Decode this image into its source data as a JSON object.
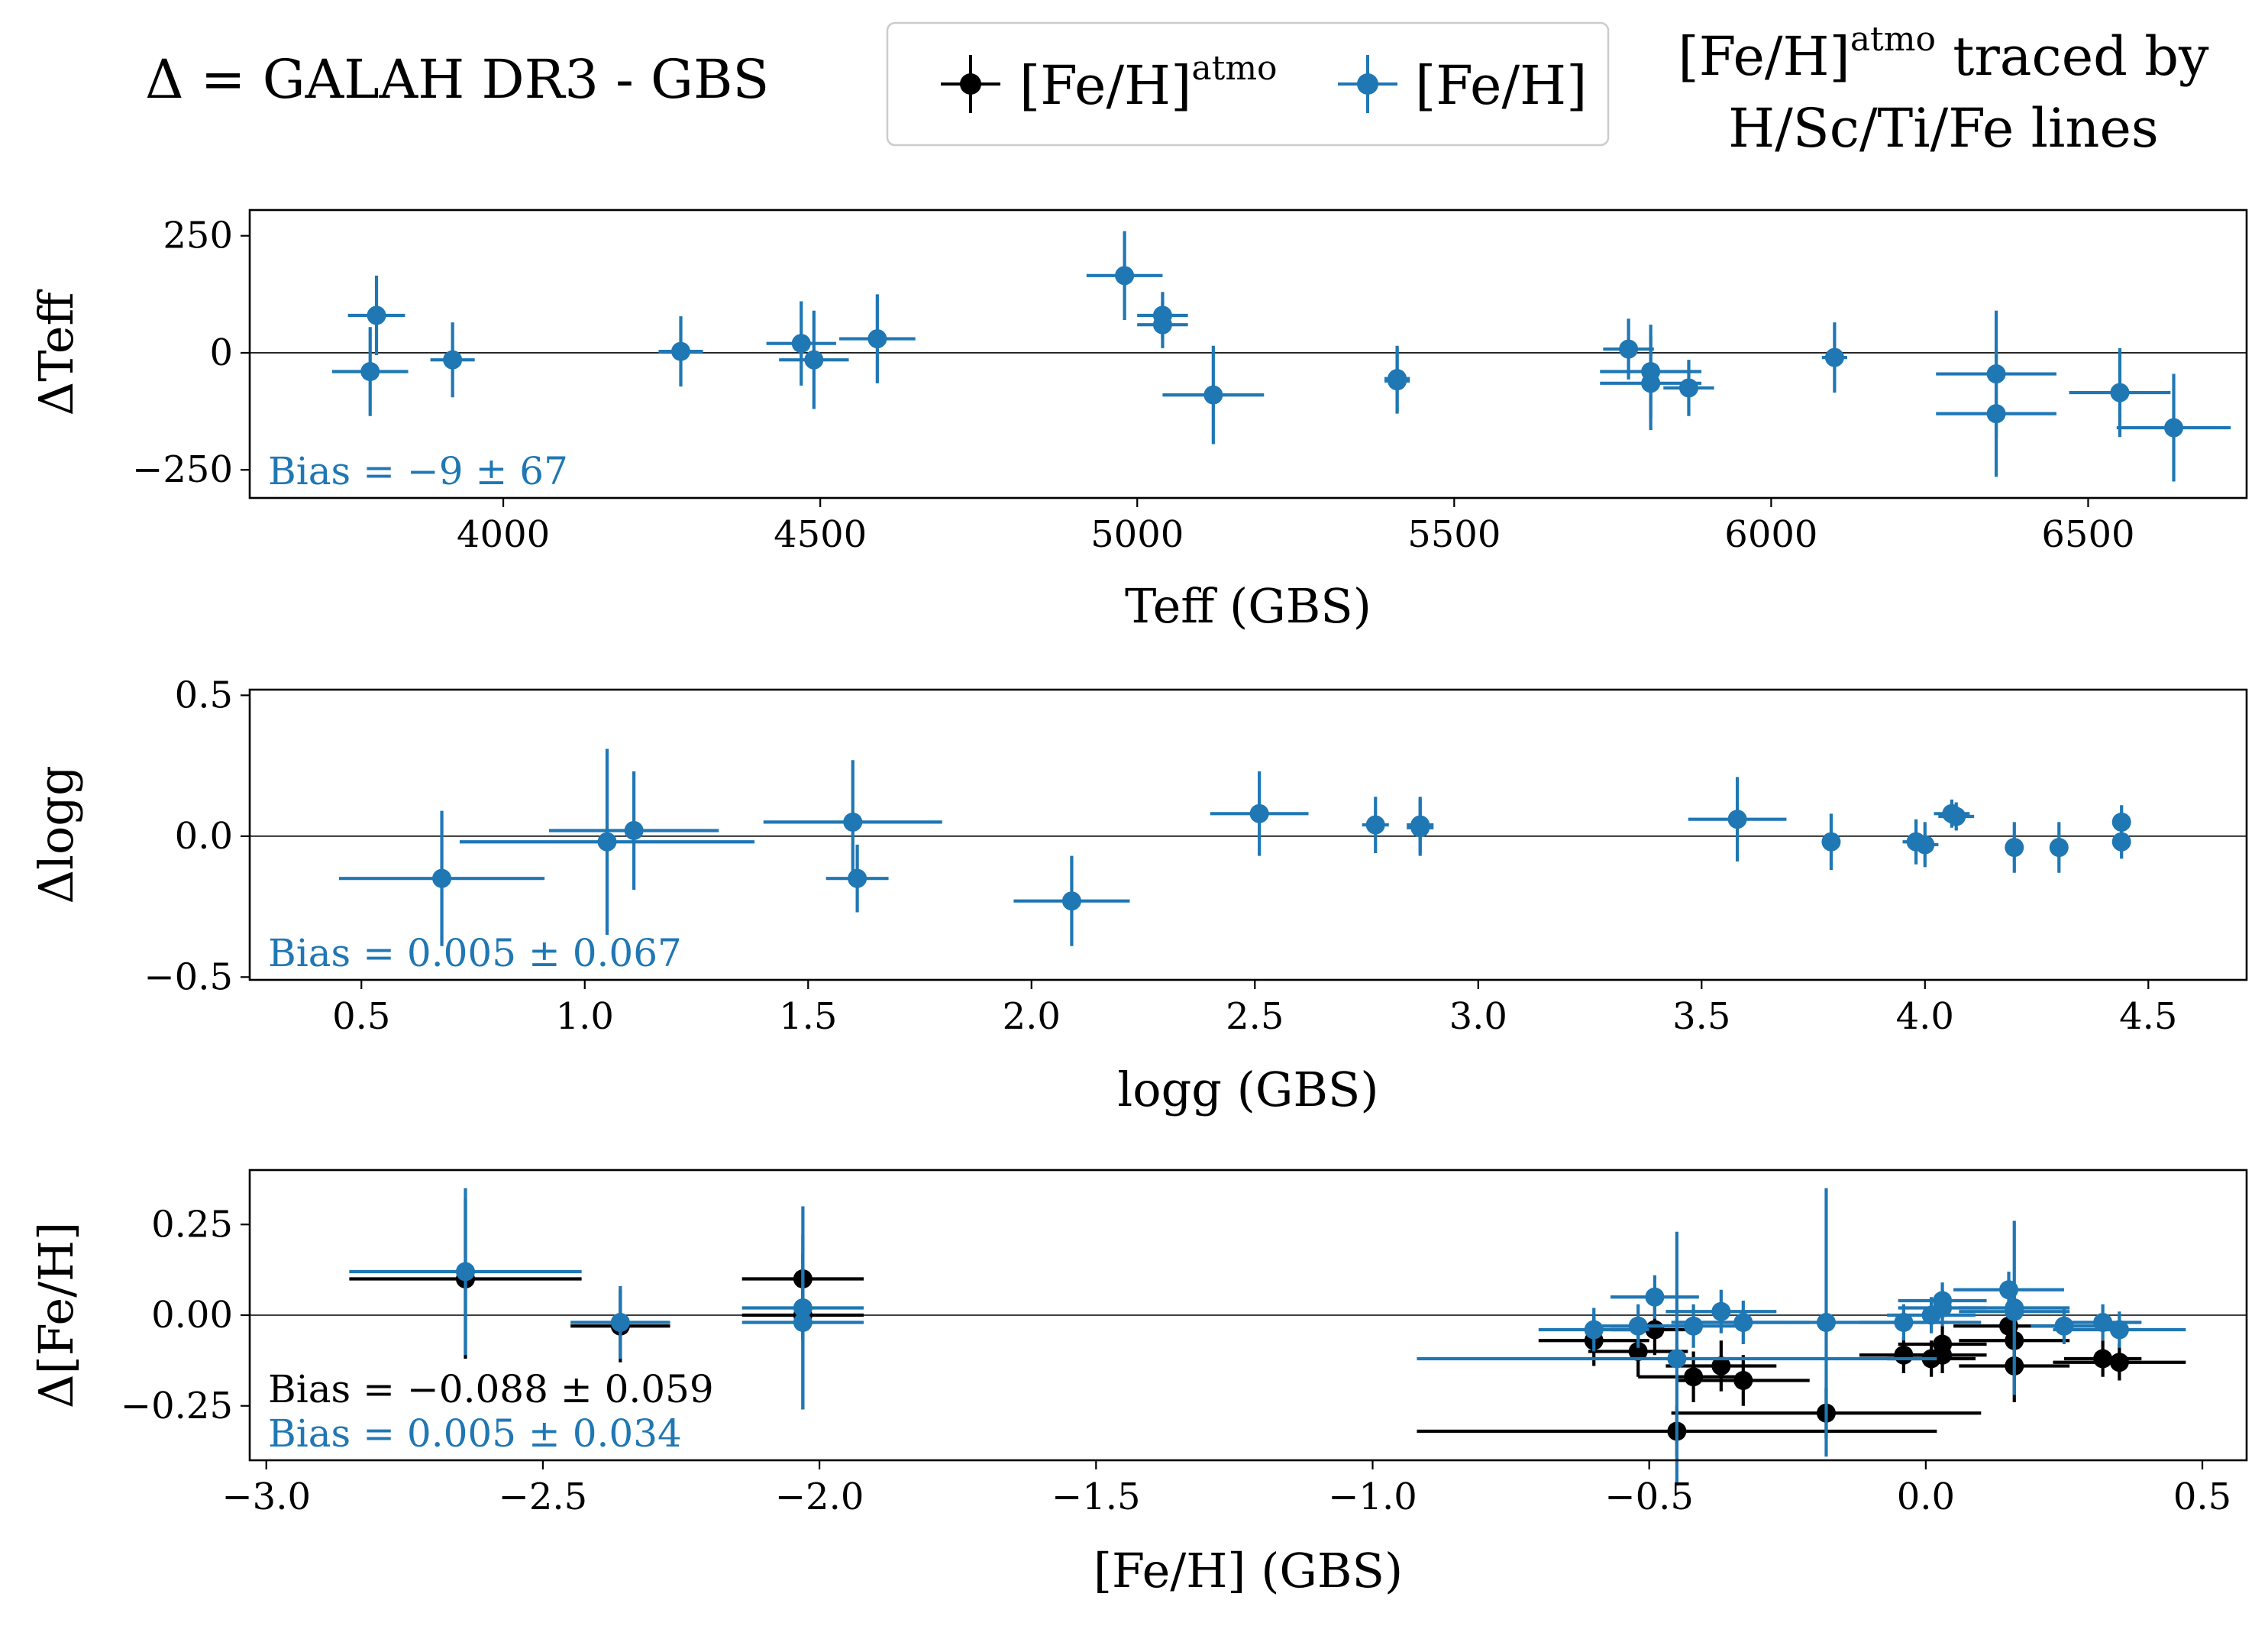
{
  "header": {
    "definition": "Δ = GALAH DR3 - GBS",
    "legend": [
      {
        "label": "[Fe/H]",
        "sup": "atmo",
        "color": "#000000"
      },
      {
        "label": "[Fe/H]",
        "sup": "",
        "color": "#1f77b4"
      }
    ],
    "note_line1_pre": "[Fe/H]",
    "note_line1_sup": "atmo",
    "note_line1_post": " traced by",
    "note_line2": "H/Sc/Ti/Fe lines"
  },
  "colors": {
    "atmo": "#000000",
    "feh": "#1f77b4"
  },
  "chart_data": [
    {
      "type": "scatter",
      "xlabel": "Teff (GBS)",
      "ylabel": "ΔTeff",
      "xlim": [
        3600,
        6750
      ],
      "ylim": [
        -310,
        305
      ],
      "xticks": [
        4000,
        4500,
        5000,
        5500,
        6000,
        6500
      ],
      "yticks": [
        -250,
        0,
        250
      ],
      "ytick_labels": [
        "−250",
        "0",
        "250"
      ],
      "annotations": [
        {
          "text": "Bias = −9 ± 67",
          "color": "#1f77b4"
        }
      ],
      "series": [
        {
          "color": "#1f77b4",
          "points": [
            {
              "x": 3800,
              "y": 80,
              "xerr": 45,
              "yerr": 85
            },
            {
              "x": 3790,
              "y": -40,
              "xerr": 60,
              "yerr": 95
            },
            {
              "x": 3920,
              "y": -15,
              "xerr": 35,
              "yerr": 80
            },
            {
              "x": 4280,
              "y": 3,
              "xerr": 35,
              "yerr": 75
            },
            {
              "x": 4470,
              "y": 20,
              "xerr": 55,
              "yerr": 90
            },
            {
              "x": 4490,
              "y": -15,
              "xerr": 55,
              "yerr": 105
            },
            {
              "x": 4590,
              "y": 30,
              "xerr": 60,
              "yerr": 95
            },
            {
              "x": 4980,
              "y": 165,
              "xerr": 60,
              "yerr": 95
            },
            {
              "x": 5040,
              "y": 80,
              "xerr": 40,
              "yerr": 50
            },
            {
              "x": 5040,
              "y": 60,
              "xerr": 40,
              "yerr": 50
            },
            {
              "x": 5120,
              "y": -90,
              "xerr": 80,
              "yerr": 105
            },
            {
              "x": 5410,
              "y": -55,
              "xerr": 20,
              "yerr": 70
            },
            {
              "x": 5410,
              "y": -60,
              "xerr": 20,
              "yerr": 70
            },
            {
              "x": 5775,
              "y": 8,
              "xerr": 40,
              "yerr": 65
            },
            {
              "x": 5810,
              "y": -40,
              "xerr": 80,
              "yerr": 100
            },
            {
              "x": 5810,
              "y": -65,
              "xerr": 80,
              "yerr": 100
            },
            {
              "x": 5870,
              "y": -75,
              "xerr": 40,
              "yerr": 60
            },
            {
              "x": 6100,
              "y": -10,
              "xerr": 20,
              "yerr": 75
            },
            {
              "x": 6355,
              "y": -45,
              "xerr": 95,
              "yerr": 135
            },
            {
              "x": 6355,
              "y": -130,
              "xerr": 95,
              "yerr": 135
            },
            {
              "x": 6550,
              "y": -85,
              "xerr": 80,
              "yerr": 95
            },
            {
              "x": 6635,
              "y": -160,
              "xerr": 90,
              "yerr": 115
            }
          ]
        }
      ]
    },
    {
      "type": "scatter",
      "xlabel": "logg (GBS)",
      "ylabel": "Δlogg",
      "xlim": [
        0.25,
        4.72
      ],
      "ylim": [
        -0.51,
        0.52
      ],
      "xticks": [
        0.5,
        1.0,
        1.5,
        2.0,
        2.5,
        3.0,
        3.5,
        4.0,
        4.5
      ],
      "xtick_labels": [
        "0.5",
        "1.0",
        "1.5",
        "2.0",
        "2.5",
        "3.0",
        "3.5",
        "4.0",
        "4.5"
      ],
      "yticks": [
        -0.5,
        0.0,
        0.5
      ],
      "ytick_labels": [
        "−0.5",
        "0.0",
        "0.5"
      ],
      "annotations": [
        {
          "text": "Bias = 0.005 ± 0.067",
          "color": "#1f77b4"
        }
      ],
      "series": [
        {
          "color": "#1f77b4",
          "points": [
            {
              "x": 0.68,
              "y": -0.15,
              "xerr": 0.23,
              "yerr": 0.24
            },
            {
              "x": 1.05,
              "y": -0.02,
              "xerr": 0.33,
              "yerr": 0.33
            },
            {
              "x": 1.11,
              "y": 0.02,
              "xerr": 0.19,
              "yerr": 0.21
            },
            {
              "x": 1.6,
              "y": 0.05,
              "xerr": 0.2,
              "yerr": 0.22
            },
            {
              "x": 1.61,
              "y": -0.15,
              "xerr": 0.07,
              "yerr": 0.12
            },
            {
              "x": 2.09,
              "y": -0.23,
              "xerr": 0.13,
              "yerr": 0.16
            },
            {
              "x": 2.51,
              "y": 0.08,
              "xerr": 0.11,
              "yerr": 0.15
            },
            {
              "x": 2.77,
              "y": 0.04,
              "xerr": 0.03,
              "yerr": 0.1
            },
            {
              "x": 2.87,
              "y": 0.04,
              "xerr": 0.03,
              "yerr": 0.1
            },
            {
              "x": 2.87,
              "y": 0.03,
              "xerr": 0.03,
              "yerr": 0.1
            },
            {
              "x": 3.58,
              "y": 0.06,
              "xerr": 0.11,
              "yerr": 0.15
            },
            {
              "x": 3.79,
              "y": -0.02,
              "xerr": 0.02,
              "yerr": 0.1
            },
            {
              "x": 3.98,
              "y": -0.02,
              "xerr": 0.03,
              "yerr": 0.08
            },
            {
              "x": 4.0,
              "y": -0.03,
              "xerr": 0.03,
              "yerr": 0.08
            },
            {
              "x": 4.06,
              "y": 0.08,
              "xerr": 0.04,
              "yerr": 0.05
            },
            {
              "x": 4.07,
              "y": 0.07,
              "xerr": 0.04,
              "yerr": 0.05
            },
            {
              "x": 4.2,
              "y": -0.04,
              "xerr": 0.02,
              "yerr": 0.09
            },
            {
              "x": 4.3,
              "y": -0.04,
              "xerr": 0.02,
              "yerr": 0.09
            },
            {
              "x": 4.44,
              "y": 0.05,
              "xerr": 0.02,
              "yerr": 0.06
            },
            {
              "x": 4.44,
              "y": -0.02,
              "xerr": 0.02,
              "yerr": 0.06
            }
          ]
        }
      ]
    },
    {
      "type": "scatter",
      "xlabel": "[Fe/H] (GBS)",
      "ylabel": "Δ[Fe/H]",
      "xlim": [
        -3.03,
        0.58
      ],
      "ylim": [
        -0.4,
        0.4
      ],
      "xticks": [
        -3.0,
        -2.5,
        -2.0,
        -1.5,
        -1.0,
        -0.5,
        0.0,
        0.5
      ],
      "xtick_labels": [
        "−3.0",
        "−2.5",
        "−2.0",
        "−1.5",
        "−1.0",
        "−0.5",
        "0.0",
        "0.5"
      ],
      "yticks": [
        -0.25,
        0.0,
        0.25
      ],
      "ytick_labels": [
        "−0.25",
        "0.00",
        "0.25"
      ],
      "annotations": [
        {
          "text": "Bias = −0.088 ± 0.059",
          "color": "#000000"
        },
        {
          "text": "Bias = 0.005 ± 0.034",
          "color": "#1f77b4"
        }
      ],
      "series": [
        {
          "name": "[Fe/H]atmo",
          "color": "#000000",
          "points": [
            {
              "x": -2.64,
              "y": 0.1,
              "xerr": 0.21,
              "yerr": 0.22
            },
            {
              "x": -2.36,
              "y": -0.03,
              "xerr": 0.09,
              "yerr": 0.1
            },
            {
              "x": -2.03,
              "y": 0.1,
              "xerr": 0.11,
              "yerr": 0.07
            },
            {
              "x": -2.03,
              "y": 0.0,
              "xerr": 0.11,
              "yerr": 0.07
            },
            {
              "x": -0.6,
              "y": -0.07,
              "xerr": 0.1,
              "yerr": 0.07
            },
            {
              "x": -0.52,
              "y": -0.1,
              "xerr": 0.09,
              "yerr": 0.07
            },
            {
              "x": -0.49,
              "y": -0.04,
              "xerr": 0.08,
              "yerr": 0.07
            },
            {
              "x": -0.45,
              "y": -0.32,
              "xerr": 0.47,
              "yerr": 0.07
            },
            {
              "x": -0.42,
              "y": -0.17,
              "xerr": 0.1,
              "yerr": 0.07
            },
            {
              "x": -0.37,
              "y": -0.14,
              "xerr": 0.1,
              "yerr": 0.07
            },
            {
              "x": -0.33,
              "y": -0.18,
              "xerr": 0.12,
              "yerr": 0.07
            },
            {
              "x": -0.18,
              "y": -0.27,
              "xerr": 0.28,
              "yerr": 0.07
            },
            {
              "x": -0.04,
              "y": -0.11,
              "xerr": 0.08,
              "yerr": 0.05
            },
            {
              "x": 0.01,
              "y": -0.12,
              "xerr": 0.08,
              "yerr": 0.05
            },
            {
              "x": 0.03,
              "y": -0.08,
              "xerr": 0.08,
              "yerr": 0.05
            },
            {
              "x": 0.03,
              "y": -0.11,
              "xerr": 0.08,
              "yerr": 0.05
            },
            {
              "x": 0.15,
              "y": -0.03,
              "xerr": 0.1,
              "yerr": 0.05
            },
            {
              "x": 0.16,
              "y": -0.07,
              "xerr": 0.1,
              "yerr": 0.05
            },
            {
              "x": 0.16,
              "y": -0.14,
              "xerr": 0.1,
              "yerr": 0.1
            },
            {
              "x": 0.32,
              "y": -0.12,
              "xerr": 0.07,
              "yerr": 0.05
            },
            {
              "x": 0.35,
              "y": -0.13,
              "xerr": 0.12,
              "yerr": 0.05
            }
          ]
        },
        {
          "name": "[Fe/H]",
          "color": "#1f77b4",
          "points": [
            {
              "x": -2.64,
              "y": 0.12,
              "xerr": 0.21,
              "yerr": 0.23
            },
            {
              "x": -2.36,
              "y": -0.02,
              "xerr": 0.09,
              "yerr": 0.1
            },
            {
              "x": -2.03,
              "y": 0.02,
              "xerr": 0.11,
              "yerr": 0.28
            },
            {
              "x": -2.03,
              "y": -0.02,
              "xerr": 0.11,
              "yerr": 0.24
            },
            {
              "x": -0.6,
              "y": -0.04,
              "xerr": 0.1,
              "yerr": 0.06
            },
            {
              "x": -0.52,
              "y": -0.03,
              "xerr": 0.09,
              "yerr": 0.06
            },
            {
              "x": -0.49,
              "y": 0.05,
              "xerr": 0.08,
              "yerr": 0.06
            },
            {
              "x": -0.45,
              "y": -0.12,
              "xerr": 0.47,
              "yerr": 0.35
            },
            {
              "x": -0.42,
              "y": -0.03,
              "xerr": 0.1,
              "yerr": 0.06
            },
            {
              "x": -0.37,
              "y": 0.01,
              "xerr": 0.1,
              "yerr": 0.06
            },
            {
              "x": -0.33,
              "y": -0.02,
              "xerr": 0.12,
              "yerr": 0.06
            },
            {
              "x": -0.18,
              "y": -0.02,
              "xerr": 0.28,
              "yerr": 0.37
            },
            {
              "x": -0.04,
              "y": -0.02,
              "xerr": 0.08,
              "yerr": 0.05
            },
            {
              "x": 0.01,
              "y": 0.0,
              "xerr": 0.08,
              "yerr": 0.05
            },
            {
              "x": 0.03,
              "y": 0.04,
              "xerr": 0.08,
              "yerr": 0.05
            },
            {
              "x": 0.03,
              "y": 0.02,
              "xerr": 0.08,
              "yerr": 0.05
            },
            {
              "x": 0.15,
              "y": 0.07,
              "xerr": 0.1,
              "yerr": 0.05
            },
            {
              "x": 0.16,
              "y": 0.02,
              "xerr": 0.1,
              "yerr": 0.24
            },
            {
              "x": 0.16,
              "y": 0.01,
              "xerr": 0.1,
              "yerr": 0.05
            },
            {
              "x": 0.25,
              "y": -0.03,
              "xerr": 0.06,
              "yerr": 0.05
            },
            {
              "x": 0.32,
              "y": -0.02,
              "xerr": 0.07,
              "yerr": 0.05
            },
            {
              "x": 0.35,
              "y": -0.04,
              "xerr": 0.12,
              "yerr": 0.05
            }
          ]
        }
      ]
    }
  ]
}
